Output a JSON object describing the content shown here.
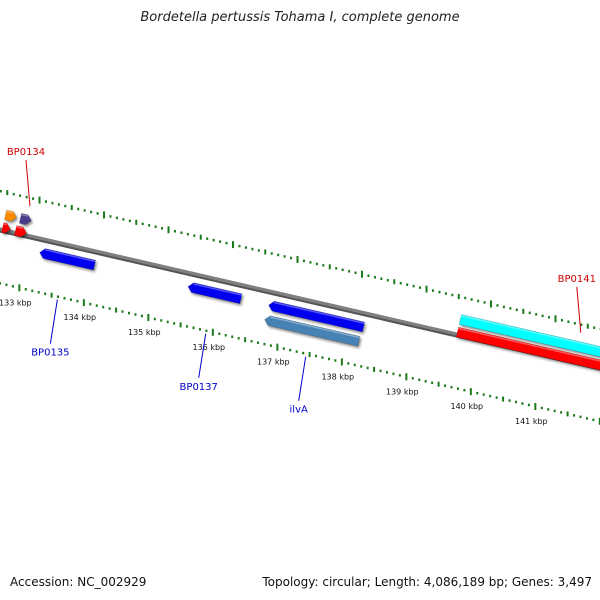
{
  "title": "Bordetella pertussis Tohama I, complete genome",
  "footer": {
    "accession": "Accession: NC_002929",
    "summary": "Topology: circular; Length: 4,086,189 bp; Genes: 3,497"
  },
  "colors": {
    "backbone": "#808080",
    "tick": "#1a7a1a",
    "forward_label": "#cc0000",
    "reverse_label": "#0000cc",
    "blue_gene": "#0000ee",
    "steel_gene": "#4682b4",
    "orange_gene": "#ff8c00",
    "purple_gene": "#483d8b",
    "red_gene": "#ff0000",
    "cyan_gene": "#00ffff"
  },
  "scale": {
    "unit": "kbp",
    "ticks": [
      {
        "kbp": 133,
        "label": "133 kbp"
      },
      {
        "kbp": 134,
        "label": "134 kbp"
      },
      {
        "kbp": 135,
        "label": "135 kbp"
      },
      {
        "kbp": 136,
        "label": "136 kbp"
      },
      {
        "kbp": 137,
        "label": "137 kbp"
      },
      {
        "kbp": 138,
        "label": "138 kbp"
      },
      {
        "kbp": 139,
        "label": "139 kbp"
      },
      {
        "kbp": 140,
        "label": "140 kbp"
      },
      {
        "kbp": 141,
        "label": "141 kbp"
      }
    ]
  },
  "genes": [
    {
      "id": "orange-partial",
      "strand": "+",
      "start_kbp": 132.55,
      "end_kbp": 132.72,
      "color": "orange_gene",
      "row": 1
    },
    {
      "id": "purple-small",
      "strand": "+",
      "start_kbp": 132.78,
      "end_kbp": 132.95,
      "color": "purple_gene",
      "row": 1
    },
    {
      "id": "red-partial",
      "strand": "+",
      "start_kbp": 132.55,
      "end_kbp": 132.67,
      "color": "red_gene",
      "row": 2
    },
    {
      "id": "red-small",
      "strand": "+",
      "start_kbp": 132.75,
      "end_kbp": 132.92,
      "color": "red_gene",
      "row": 2
    },
    {
      "id": "BP0135-gene",
      "strand": "-",
      "start_kbp": 133.18,
      "end_kbp": 134.03,
      "color": "blue_gene",
      "row": 1
    },
    {
      "id": "BP0137-gene",
      "strand": "-",
      "start_kbp": 135.48,
      "end_kbp": 136.3,
      "color": "blue_gene",
      "row": 1
    },
    {
      "id": "ilvA-upper",
      "strand": "-",
      "start_kbp": 136.73,
      "end_kbp": 138.2,
      "color": "blue_gene",
      "row": 1
    },
    {
      "id": "ilvA-lower",
      "strand": "-",
      "start_kbp": 136.72,
      "end_kbp": 138.18,
      "color": "steel_gene",
      "row": 2
    },
    {
      "id": "BP0141-cyan",
      "strand": "+",
      "start_kbp": 139.6,
      "end_kbp": 142.5,
      "color": "cyan_gene",
      "row": 1
    },
    {
      "id": "BP0141-red",
      "strand": "+",
      "start_kbp": 139.6,
      "end_kbp": 142.5,
      "color": "red_gene",
      "row": 2
    }
  ],
  "labels": [
    {
      "text": "BP0134",
      "strand": "+",
      "at_kbp": 132.88,
      "color": "forward_label"
    },
    {
      "text": "BP0135",
      "strand": "-",
      "at_kbp": 133.6,
      "color": "reverse_label"
    },
    {
      "text": "BP0137",
      "strand": "-",
      "at_kbp": 135.9,
      "color": "reverse_label"
    },
    {
      "text": "ilvA",
      "strand": "-",
      "at_kbp": 137.45,
      "color": "reverse_label"
    },
    {
      "text": "BP0141",
      "strand": "+",
      "at_kbp": 141.42,
      "color": "forward_label"
    }
  ]
}
